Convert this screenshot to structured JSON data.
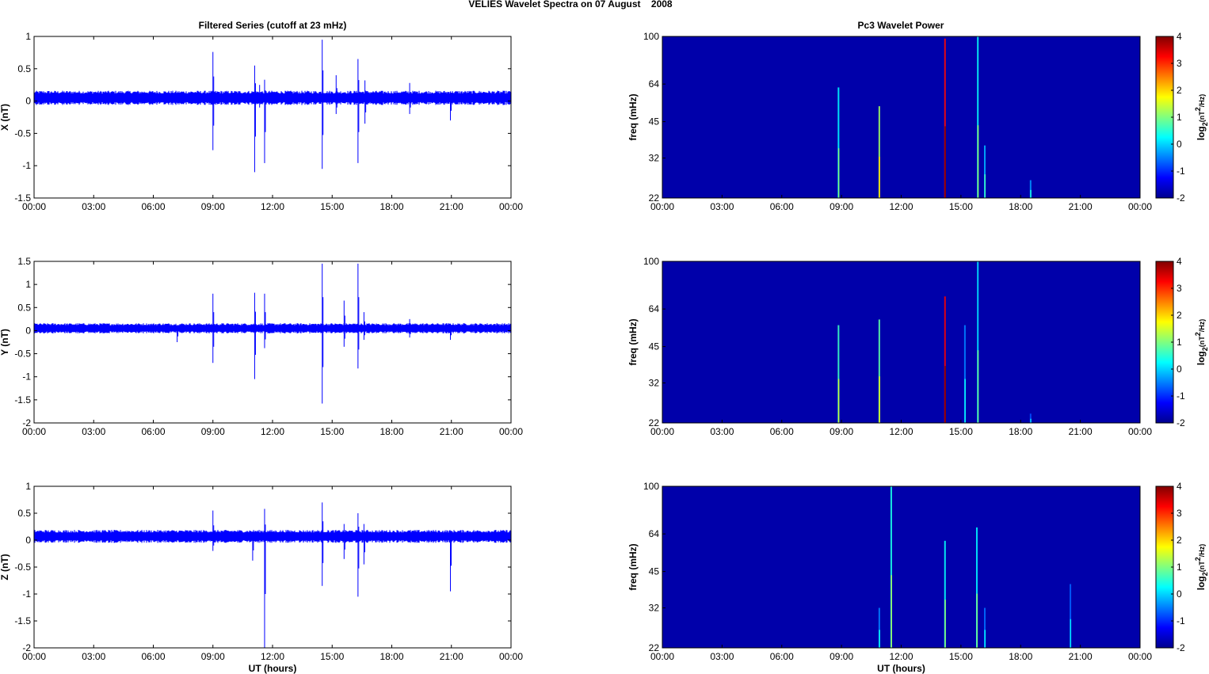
{
  "figure": {
    "suptitle": "VELIES Wavelet Spectra on 07 August    2008",
    "left_title": "Filtered Series (cutoff at 23 mHz)",
    "right_title": "Pc3 Wavelet Power"
  },
  "chart_data": [
    {
      "type": "line",
      "panel": "X",
      "ylabel": "X (nT)",
      "xlabel": "",
      "xlim": [
        0,
        24
      ],
      "ylim": [
        -1.5,
        1
      ],
      "yticks": [
        -1.5,
        -1,
        -0.5,
        0,
        0.5,
        1
      ],
      "ytick_labels": [
        "-1.5",
        "-1",
        "-0.5",
        "0",
        "0.5",
        "1"
      ],
      "xtick_labels": [
        "00:00",
        "03:00",
        "06:00",
        "09:00",
        "12:00",
        "15:00",
        "18:00",
        "21:00",
        "00:00"
      ],
      "series": [
        {
          "color": "#0000ff",
          "baseline": 0.05,
          "noise_amplitude": 0.11,
          "spikes": [
            {
              "t": 9.0,
              "max": 0.76,
              "min": -0.76
            },
            {
              "t": 11.1,
              "max": 0.55,
              "min": -1.1
            },
            {
              "t": 11.35,
              "max": 0.25,
              "min": -0.1
            },
            {
              "t": 11.6,
              "max": 0.33,
              "min": -0.96
            },
            {
              "t": 14.5,
              "max": 0.95,
              "min": -1.05
            },
            {
              "t": 15.2,
              "max": 0.4,
              "min": -0.2
            },
            {
              "t": 16.3,
              "max": 0.65,
              "min": -0.96
            },
            {
              "t": 16.65,
              "max": 0.32,
              "min": -0.35
            },
            {
              "t": 18.9,
              "max": 0.28,
              "min": -0.2
            },
            {
              "t": 20.95,
              "max": 0.15,
              "min": -0.3
            }
          ]
        }
      ]
    },
    {
      "type": "line",
      "panel": "Y",
      "ylabel": "Y (nT)",
      "xlabel": "",
      "xlim": [
        0,
        24
      ],
      "ylim": [
        -2,
        1.5
      ],
      "yticks": [
        -2,
        -1.5,
        -1,
        -0.5,
        0,
        0.5,
        1,
        1.5
      ],
      "ytick_labels": [
        "-2",
        "-1.5",
        "-1",
        "-0.5",
        "0",
        "0.5",
        "1",
        "1.5"
      ],
      "xtick_labels": [
        "00:00",
        "03:00",
        "06:00",
        "09:00",
        "12:00",
        "15:00",
        "18:00",
        "21:00",
        "00:00"
      ],
      "series": [
        {
          "color": "#0000ff",
          "baseline": 0.05,
          "noise_amplitude": 0.11,
          "spikes": [
            {
              "t": 9.0,
              "max": 0.8,
              "min": -0.7
            },
            {
              "t": 11.1,
              "max": 0.82,
              "min": -1.05
            },
            {
              "t": 11.6,
              "max": 0.8,
              "min": -0.38
            },
            {
              "t": 14.5,
              "max": 1.45,
              "min": -1.58
            },
            {
              "t": 15.6,
              "max": 0.65,
              "min": -0.35
            },
            {
              "t": 16.3,
              "max": 1.45,
              "min": -0.82
            },
            {
              "t": 16.6,
              "max": 0.4,
              "min": -0.2
            },
            {
              "t": 7.2,
              "max": 0.1,
              "min": -0.25
            },
            {
              "t": 18.9,
              "max": 0.25,
              "min": -0.15
            },
            {
              "t": 20.95,
              "max": 0.15,
              "min": -0.2
            }
          ]
        }
      ]
    },
    {
      "type": "line",
      "panel": "Z",
      "ylabel": "Z (nT)",
      "xlabel": "UT (hours)",
      "xlim": [
        0,
        24
      ],
      "ylim": [
        -2,
        1
      ],
      "yticks": [
        -2,
        -1.5,
        -1,
        -0.5,
        0,
        0.5,
        1
      ],
      "ytick_labels": [
        "-2",
        "-1.5",
        "-1",
        "-0.5",
        "0",
        "0.5",
        "1"
      ],
      "xtick_labels": [
        "00:00",
        "03:00",
        "06:00",
        "09:00",
        "12:00",
        "15:00",
        "18:00",
        "21:00",
        "00:00"
      ],
      "series": [
        {
          "color": "#0000ff",
          "baseline": 0.07,
          "noise_amplitude": 0.12,
          "spikes": [
            {
              "t": 9.0,
              "max": 0.55,
              "min": -0.2
            },
            {
              "t": 11.0,
              "max": 0.1,
              "min": -0.38
            },
            {
              "t": 11.6,
              "max": 0.58,
              "min": -2.0
            },
            {
              "t": 14.5,
              "max": 0.7,
              "min": -0.85
            },
            {
              "t": 15.6,
              "max": 0.3,
              "min": -0.35
            },
            {
              "t": 16.3,
              "max": 0.5,
              "min": -1.05
            },
            {
              "t": 16.6,
              "max": 0.3,
              "min": -0.45
            },
            {
              "t": 20.95,
              "max": 0.1,
              "min": -0.95
            }
          ]
        }
      ]
    },
    {
      "type": "heatmap",
      "panel": "X",
      "ylabel": "freq (mHz)",
      "xlabel": "",
      "xlim": [
        0,
        24
      ],
      "ylim": [
        22,
        100
      ],
      "y_scale": "log",
      "yticks": [
        22,
        32,
        45,
        64,
        100
      ],
      "xtick_labels": [
        "00:00",
        "03:00",
        "06:00",
        "09:00",
        "12:00",
        "15:00",
        "18:00",
        "21:00",
        "00:00"
      ],
      "background_value": -1.75,
      "colorbar": {
        "label": "log2(nT^2/Hz)",
        "range": [
          -2,
          4
        ],
        "ticks": [
          -2,
          -1,
          0,
          1,
          2,
          3,
          4
        ]
      },
      "bursts": [
        {
          "t": 8.85,
          "fmax": 62,
          "peak": 0.2
        },
        {
          "t": 10.9,
          "fmax": 52,
          "peak": 1.2
        },
        {
          "t": 14.2,
          "fmax": 98,
          "peak": 3.2
        },
        {
          "t": 15.85,
          "fmax": 100,
          "peak": 0.3
        },
        {
          "t": 16.2,
          "fmax": 36,
          "peak": -0.2
        },
        {
          "t": 18.5,
          "fmax": 26,
          "peak": -0.4
        }
      ]
    },
    {
      "type": "heatmap",
      "panel": "Y",
      "ylabel": "freq (mHz)",
      "xlabel": "",
      "xlim": [
        0,
        24
      ],
      "ylim": [
        22,
        100
      ],
      "y_scale": "log",
      "yticks": [
        22,
        32,
        45,
        64,
        100
      ],
      "xtick_labels": [
        "00:00",
        "03:00",
        "06:00",
        "09:00",
        "12:00",
        "15:00",
        "18:00",
        "21:00",
        "00:00"
      ],
      "background_value": -1.75,
      "colorbar": {
        "label": "log2(nT^2/Hz)",
        "range": [
          -2,
          4
        ],
        "ticks": [
          -2,
          -1,
          0,
          1,
          2,
          3,
          4
        ]
      },
      "bursts": [
        {
          "t": 8.85,
          "fmax": 55,
          "peak": 0.6
        },
        {
          "t": 10.9,
          "fmax": 58,
          "peak": 0.8
        },
        {
          "t": 14.2,
          "fmax": 72,
          "peak": 3.3
        },
        {
          "t": 15.2,
          "fmax": 55,
          "peak": -0.5
        },
        {
          "t": 15.85,
          "fmax": 100,
          "peak": 0.1
        },
        {
          "t": 18.5,
          "fmax": 24,
          "peak": -0.8
        }
      ]
    },
    {
      "type": "heatmap",
      "panel": "Z",
      "ylabel": "freq (mHz)",
      "xlabel": "UT (hours)",
      "xlim": [
        0,
        24
      ],
      "ylim": [
        22,
        100
      ],
      "y_scale": "log",
      "yticks": [
        22,
        32,
        45,
        64,
        100
      ],
      "xtick_labels": [
        "00:00",
        "03:00",
        "06:00",
        "09:00",
        "12:00",
        "15:00",
        "18:00",
        "21:00",
        "00:00"
      ],
      "background_value": -1.75,
      "colorbar": {
        "label": "log2(nT^2/Hz)",
        "range": [
          -2,
          4
        ],
        "ticks": [
          -2,
          -1,
          0,
          1,
          2,
          3,
          4
        ]
      },
      "bursts": [
        {
          "t": 10.9,
          "fmax": 32,
          "peak": -0.5
        },
        {
          "t": 11.5,
          "fmax": 100,
          "peak": 0.4
        },
        {
          "t": 14.2,
          "fmax": 60,
          "peak": 0.3
        },
        {
          "t": 15.8,
          "fmax": 68,
          "peak": 0.2
        },
        {
          "t": 16.2,
          "fmax": 32,
          "peak": -0.6
        },
        {
          "t": 20.5,
          "fmax": 40,
          "peak": -0.7
        }
      ]
    }
  ]
}
